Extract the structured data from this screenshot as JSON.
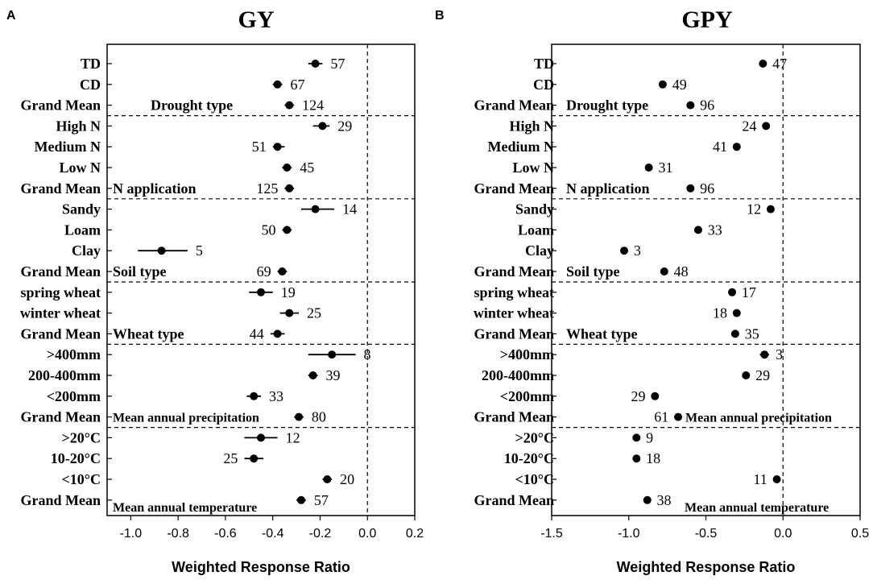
{
  "chart_data": [
    {
      "type": "forest",
      "panel": "A",
      "title": "GY",
      "xlabel": "Weighted Response Ratio",
      "xlim": [
        -1.1,
        0.2
      ],
      "xticks": [
        "-1.0",
        "-0.8",
        "-0.6",
        "-0.4",
        "-0.2",
        "0.0",
        "0.2"
      ],
      "xtick_values": [
        -1.0,
        -0.8,
        -0.6,
        -0.4,
        -0.2,
        0.0,
        0.2
      ],
      "groups": [
        {
          "label": "Drought type",
          "rows": [
            {
              "category": "TD",
              "mean": -0.22,
              "low": -0.25,
              "high": -0.19,
              "n": "57"
            },
            {
              "category": "CD",
              "mean": -0.38,
              "low": -0.4,
              "high": -0.36,
              "n": "67"
            },
            {
              "category": "Grand Mean",
              "mean": -0.33,
              "low": -0.35,
              "high": -0.31,
              "n": "124"
            }
          ]
        },
        {
          "label": "N application",
          "rows": [
            {
              "category": "High N",
              "mean": -0.19,
              "low": -0.23,
              "high": -0.16,
              "n": "29"
            },
            {
              "category": "Medium N",
              "mean": -0.38,
              "low": -0.4,
              "high": -0.35,
              "n": "51"
            },
            {
              "category": "Low N",
              "mean": -0.34,
              "low": -0.36,
              "high": -0.32,
              "n": "45"
            },
            {
              "category": "Grand Mean",
              "mean": -0.33,
              "low": -0.35,
              "high": -0.31,
              "n": "125"
            }
          ]
        },
        {
          "label": "Soil type",
          "rows": [
            {
              "category": "Sandy",
              "mean": -0.22,
              "low": -0.28,
              "high": -0.14,
              "n": "14"
            },
            {
              "category": "Loam",
              "mean": -0.34,
              "low": -0.36,
              "high": -0.32,
              "n": "50"
            },
            {
              "category": "Clay",
              "mean": -0.87,
              "low": -0.97,
              "high": -0.76,
              "n": "5"
            },
            {
              "category": "Grand Mean",
              "mean": -0.36,
              "low": -0.38,
              "high": -0.34,
              "n": "69"
            }
          ]
        },
        {
          "label": "Wheat type",
          "rows": [
            {
              "category": "spring wheat",
              "mean": -0.45,
              "low": -0.5,
              "high": -0.4,
              "n": "19"
            },
            {
              "category": "winter wheat",
              "mean": -0.33,
              "low": -0.37,
              "high": -0.29,
              "n": "25"
            },
            {
              "category": "Grand Mean",
              "mean": -0.38,
              "low": -0.41,
              "high": -0.35,
              "n": "44"
            }
          ]
        },
        {
          "label": "Mean annual precipitation",
          "rows": [
            {
              "category": ">400mm",
              "mean": -0.15,
              "low": -0.25,
              "high": -0.05,
              "n": "8"
            },
            {
              "category": "200-400mm",
              "mean": -0.23,
              "low": -0.25,
              "high": -0.21,
              "n": "39"
            },
            {
              "category": "<200mm",
              "mean": -0.48,
              "low": -0.51,
              "high": -0.45,
              "n": "33"
            },
            {
              "category": "Grand Mean",
              "mean": -0.29,
              "low": -0.31,
              "high": -0.27,
              "n": "80"
            }
          ]
        },
        {
          "label": "Mean annual temperature",
          "rows": [
            {
              "category": ">20°C",
              "mean": -0.45,
              "low": -0.52,
              "high": -0.38,
              "n": "12"
            },
            {
              "category": "10-20°C",
              "mean": -0.48,
              "low": -0.52,
              "high": -0.44,
              "n": "25"
            },
            {
              "category": "<10°C",
              "mean": -0.17,
              "low": -0.19,
              "high": -0.15,
              "n": "20"
            },
            {
              "category": "Grand Mean",
              "mean": -0.28,
              "low": -0.3,
              "high": -0.26,
              "n": "57"
            }
          ]
        }
      ]
    },
    {
      "type": "forest",
      "panel": "B",
      "title": "GPY",
      "xlabel": "Weighted Response Ratio",
      "xlim": [
        -1.5,
        0.5
      ],
      "xticks": [
        "-1.5",
        "-1.0",
        "-0.5",
        "0.0",
        "0.5"
      ],
      "xtick_values": [
        -1.5,
        -1.0,
        -0.5,
        0.0,
        0.5
      ],
      "groups": [
        {
          "label": "Drought type",
          "rows": [
            {
              "category": "TD",
              "mean": -0.13,
              "low": -0.15,
              "high": -0.11,
              "n": "47"
            },
            {
              "category": "CD",
              "mean": -0.78,
              "low": -0.8,
              "high": -0.76,
              "n": "49"
            },
            {
              "category": "Grand Mean",
              "mean": -0.6,
              "low": -0.62,
              "high": -0.58,
              "n": "96"
            }
          ]
        },
        {
          "label": "N application",
          "rows": [
            {
              "category": "High N",
              "mean": -0.11,
              "low": -0.13,
              "high": -0.09,
              "n": "24"
            },
            {
              "category": "Medium N",
              "mean": -0.3,
              "low": -0.32,
              "high": -0.28,
              "n": "41"
            },
            {
              "category": "Low N",
              "mean": -0.87,
              "low": -0.89,
              "high": -0.85,
              "n": "31"
            },
            {
              "category": "Grand Mean",
              "mean": -0.6,
              "low": -0.62,
              "high": -0.58,
              "n": "96"
            }
          ]
        },
        {
          "label": "Soil type",
          "rows": [
            {
              "category": "Sandy",
              "mean": -0.08,
              "low": -0.1,
              "high": -0.06,
              "n": "12"
            },
            {
              "category": "Loam",
              "mean": -0.55,
              "low": -0.57,
              "high": -0.53,
              "n": "33"
            },
            {
              "category": "Clay",
              "mean": -1.03,
              "low": -1.05,
              "high": -1.01,
              "n": "3"
            },
            {
              "category": "Grand Mean",
              "mean": -0.77,
              "low": -0.79,
              "high": -0.75,
              "n": "48"
            }
          ]
        },
        {
          "label": "Wheat type",
          "rows": [
            {
              "category": "spring wheat",
              "mean": -0.33,
              "low": -0.35,
              "high": -0.31,
              "n": "17"
            },
            {
              "category": "winter wheat",
              "mean": -0.3,
              "low": -0.32,
              "high": -0.28,
              "n": "18"
            },
            {
              "category": "Grand Mean",
              "mean": -0.31,
              "low": -0.33,
              "high": -0.29,
              "n": "35"
            }
          ]
        },
        {
          "label": "Mean annual precipitation",
          "rows": [
            {
              "category": ">400mm",
              "mean": -0.12,
              "low": -0.15,
              "high": -0.09,
              "n": "3"
            },
            {
              "category": "200-400mm",
              "mean": -0.24,
              "low": -0.26,
              "high": -0.22,
              "n": "29"
            },
            {
              "category": "<200mm",
              "mean": -0.83,
              "low": -0.85,
              "high": -0.81,
              "n": "29"
            },
            {
              "category": "Grand Mean",
              "mean": -0.68,
              "low": -0.7,
              "high": -0.66,
              "n": "61"
            }
          ]
        },
        {
          "label": "Mean annual temperature",
          "rows": [
            {
              "category": ">20°C",
              "mean": -0.95,
              "low": -0.97,
              "high": -0.93,
              "n": "9"
            },
            {
              "category": "10-20°C",
              "mean": -0.95,
              "low": -0.97,
              "high": -0.93,
              "n": "18"
            },
            {
              "category": "<10°C",
              "mean": -0.04,
              "low": -0.06,
              "high": -0.02,
              "n": "11"
            },
            {
              "category": "Grand Mean",
              "mean": -0.88,
              "low": -0.9,
              "high": -0.86,
              "n": "38"
            }
          ]
        }
      ]
    }
  ]
}
